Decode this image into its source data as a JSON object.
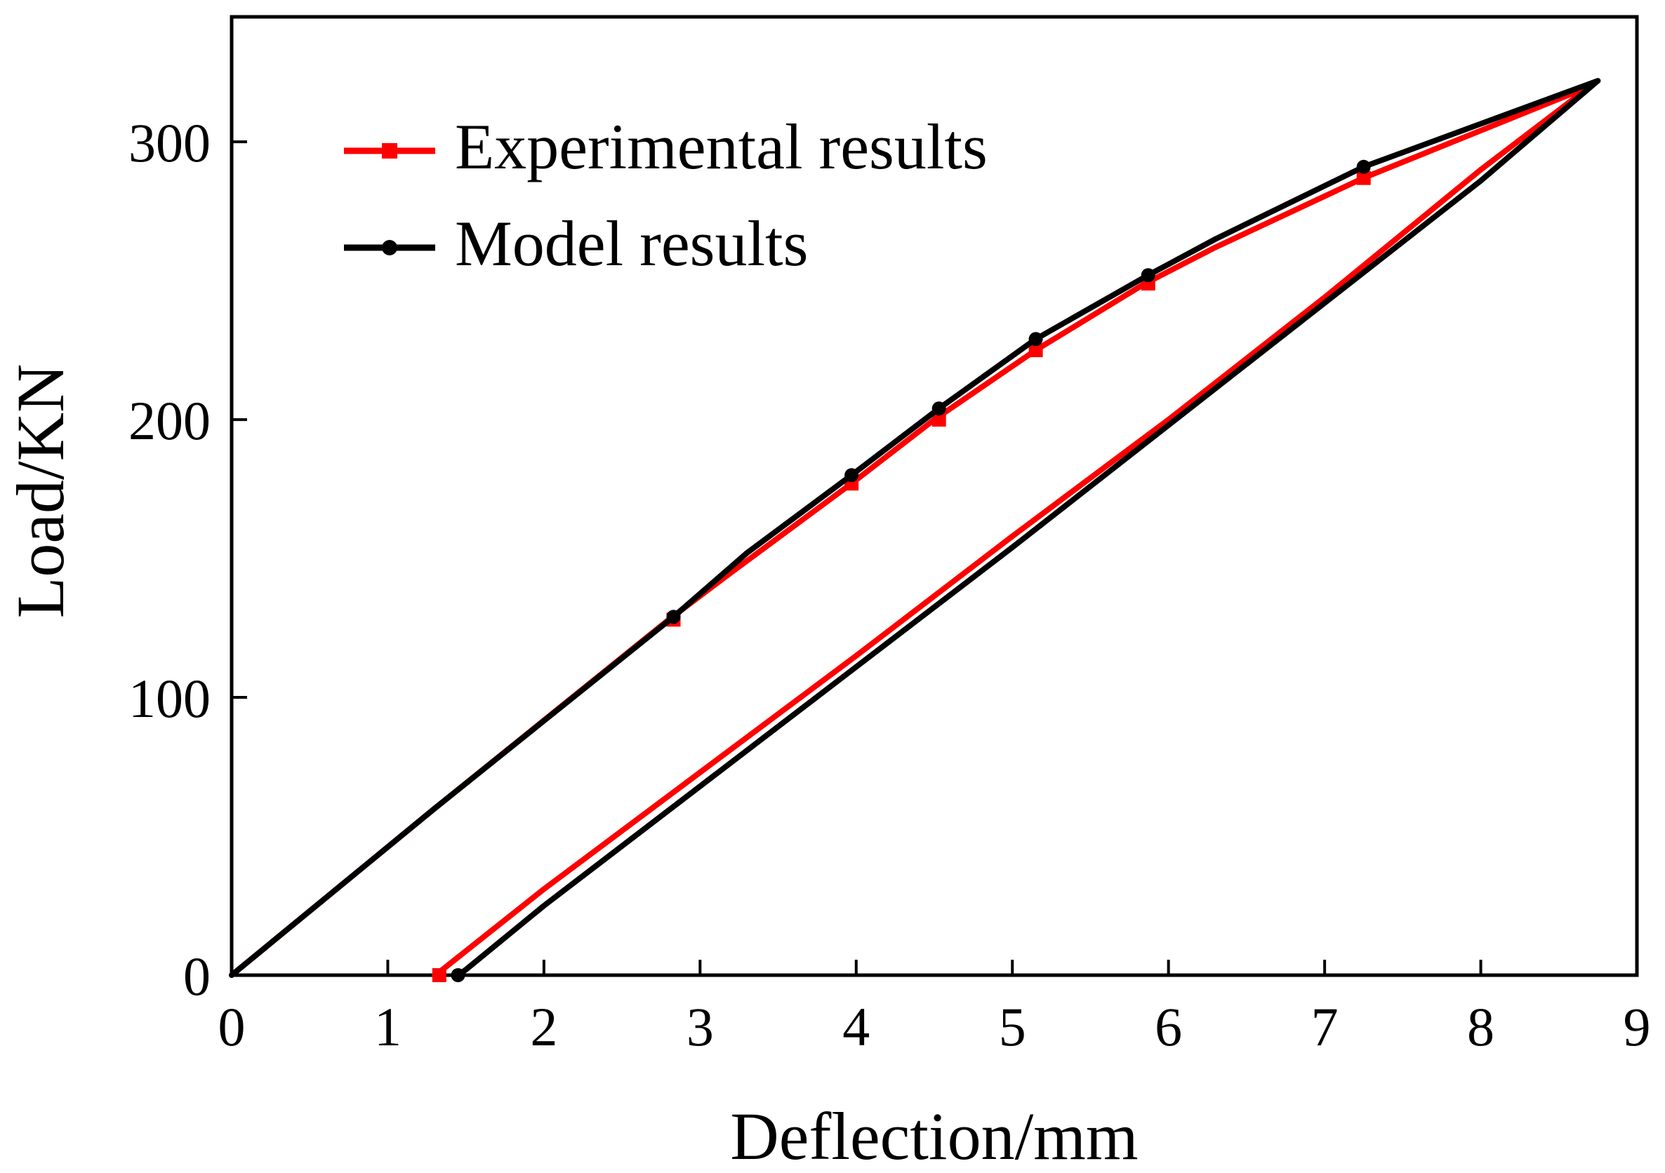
{
  "chart_data": {
    "type": "line",
    "title": "",
    "xlabel": "Deflection/mm",
    "ylabel": "Load/KN",
    "xlim": [
      0,
      9
    ],
    "ylim": [
      0,
      345
    ],
    "xticks": [
      0,
      1,
      2,
      3,
      4,
      5,
      6,
      7,
      8,
      9
    ],
    "xtick_labels": [
      "0",
      "1",
      "2",
      "3",
      "4",
      "5",
      "6",
      "7",
      "8",
      "9"
    ],
    "yticks": [
      0,
      100,
      200,
      300
    ],
    "ytick_labels": [
      "0",
      "100",
      "200",
      "300"
    ],
    "grid": false,
    "legend_position": "top-left",
    "series": [
      {
        "name": "Experimental results",
        "color": "#ff0000",
        "marker": "square",
        "x": [
          0,
          1.3,
          2.8,
          3.2,
          3.97,
          4.5,
          5.15,
          5.85,
          6.3,
          7.25,
          8.7,
          8.0,
          7.0,
          6.0,
          5.0,
          4.0,
          3.0,
          2.0,
          1.35,
          1.3
        ],
        "y": [
          0,
          60,
          128,
          145,
          177,
          200,
          225,
          249,
          262,
          287,
          320,
          290,
          244,
          200,
          158,
          115,
          73,
          31,
          2,
          0
        ],
        "marker_x": [
          2.83,
          3.97,
          4.53,
          5.15,
          5.87,
          7.25,
          1.33
        ],
        "marker_y": [
          128,
          177,
          200,
          225,
          249,
          287,
          0
        ]
      },
      {
        "name": "Model results",
        "color": "#000000",
        "marker": "circle",
        "x": [
          0,
          1.3,
          2.83,
          3.3,
          3.97,
          4.53,
          5.15,
          5.87,
          6.3,
          7.25,
          8.75,
          8.0,
          7.0,
          6.0,
          5.0,
          4.0,
          3.0,
          2.0,
          1.5,
          1.45
        ],
        "y": [
          0,
          60,
          129,
          152,
          180,
          204,
          229,
          252,
          265,
          291,
          322,
          286,
          242,
          198,
          154,
          111,
          68,
          25,
          2,
          0
        ],
        "marker_x": [
          2.83,
          3.97,
          4.53,
          5.15,
          5.87,
          7.25,
          1.45
        ],
        "marker_y": [
          129,
          180,
          204,
          229,
          252,
          291,
          0
        ]
      }
    ]
  }
}
